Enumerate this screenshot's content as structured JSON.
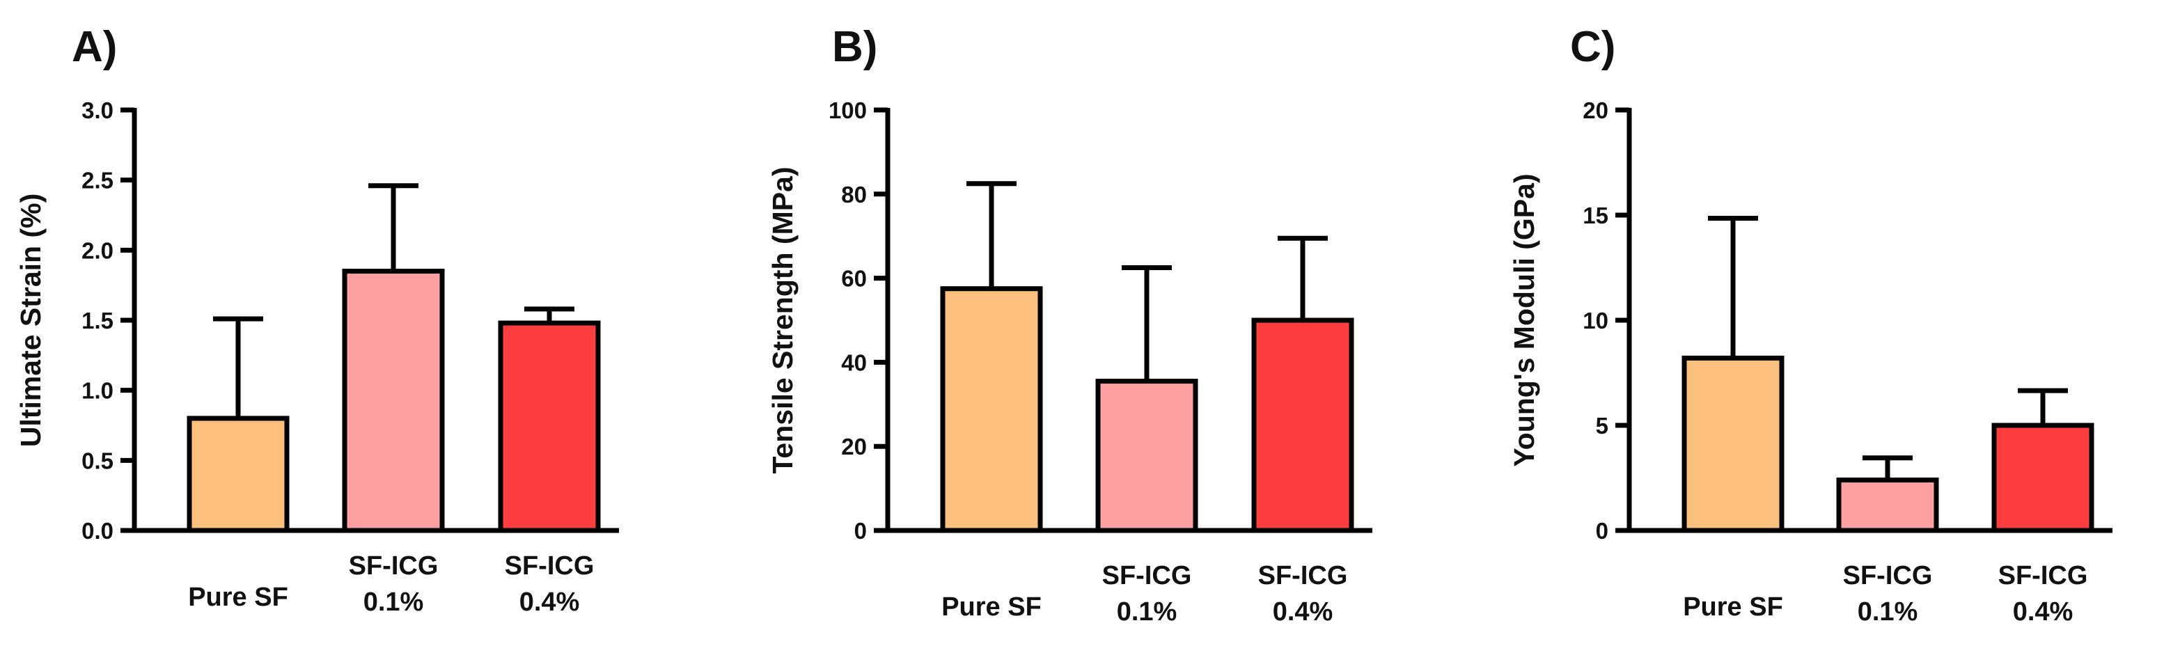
{
  "chart_data": [
    {
      "type": "bar",
      "panel": "A)",
      "title": "",
      "ylabel": "Ultimate Strain (%)",
      "xlabel": "",
      "ylim": [
        0,
        3.0
      ],
      "yticks": [
        "0.0",
        "0.5",
        "1.0",
        "1.5",
        "2.0",
        "2.5",
        "3.0"
      ],
      "categories": [
        [
          "Pure SF"
        ],
        [
          "SF-ICG",
          "0.1%"
        ],
        [
          "SF-ICG",
          "0.4%"
        ]
      ],
      "values": [
        0.8,
        1.85,
        1.48
      ],
      "error_upper": [
        1.51,
        2.46,
        1.58
      ],
      "colors": [
        "#FBC07E",
        "#FCA0A2",
        "#FC3E3F"
      ]
    },
    {
      "type": "bar",
      "panel": "B)",
      "title": "",
      "ylabel": "Tensile Strength (MPa)",
      "xlabel": "",
      "ylim": [
        0,
        100
      ],
      "yticks": [
        "0",
        "20",
        "40",
        "60",
        "80",
        "100"
      ],
      "categories": [
        [
          "Pure SF"
        ],
        [
          "SF-ICG",
          "0.1%"
        ],
        [
          "SF-ICG",
          "0.4%"
        ]
      ],
      "values": [
        57.5,
        35.5,
        50.0
      ],
      "error_upper": [
        82.5,
        62.5,
        69.5
      ],
      "colors": [
        "#FBC07E",
        "#FCA0A2",
        "#FC3E3F"
      ]
    },
    {
      "type": "bar",
      "panel": "C)",
      "title": "",
      "ylabel": "Young's Moduli (GPa)",
      "xlabel": "",
      "ylim": [
        0,
        20
      ],
      "yticks": [
        "0",
        "5",
        "10",
        "15",
        "20"
      ],
      "categories": [
        [
          "Pure SF"
        ],
        [
          "SF-ICG",
          "0.1%"
        ],
        [
          "SF-ICG",
          "0.4%"
        ]
      ],
      "values": [
        8.2,
        2.4,
        5.0
      ],
      "error_upper": [
        14.85,
        3.45,
        6.65
      ],
      "colors": [
        "#FBC07E",
        "#FCA0A2",
        "#FC3E3F"
      ]
    }
  ]
}
